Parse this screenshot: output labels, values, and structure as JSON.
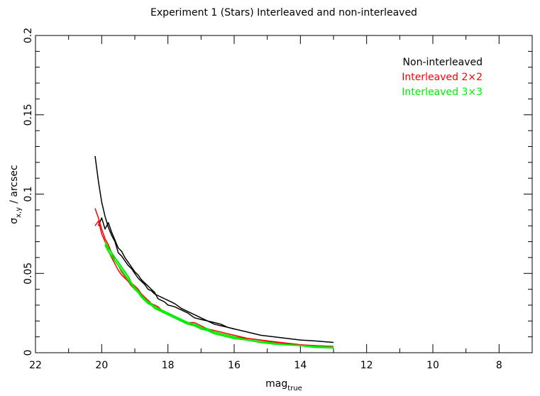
{
  "chart_data": {
    "type": "line",
    "title": "Experiment 1 (Stars) Interleaved and non-interleaved",
    "xlabel_main": "mag",
    "xlabel_sub": "true",
    "ylabel_main": "σ",
    "ylabel_sub": "x,y",
    "ylabel_rest": "/ arcsec",
    "xlim": [
      22,
      7
    ],
    "ylim": [
      0,
      0.2
    ],
    "x_tick_labels": [
      "22",
      "20",
      "18",
      "16",
      "14",
      "12",
      "10",
      "8"
    ],
    "x_ticks": [
      22,
      20,
      18,
      16,
      14,
      12,
      10,
      8
    ],
    "y_tick_labels": [
      "0",
      "0.05",
      "0.1",
      "0.15",
      "0.2"
    ],
    "y_ticks": [
      0,
      0.05,
      0.1,
      0.15,
      0.2
    ],
    "legend_position": "top-right",
    "series": [
      {
        "name": "Non-interleaved",
        "color": "#000000",
        "lines": [
          {
            "x": [
              20.2,
              20.1,
              20.0,
              19.9,
              19.8,
              19.7,
              19.6,
              19.5,
              19.4,
              19.3,
              19.2,
              19.1,
              19.0,
              18.9,
              18.8,
              18.7,
              18.6,
              18.5,
              18.4,
              18.3,
              18.2,
              18.1,
              18.0,
              17.8,
              17.6,
              17.4,
              17.2,
              17.0,
              16.8,
              16.6,
              16.4,
              16.2,
              16.0,
              15.6,
              15.2,
              14.8,
              14.4,
              14.0,
              13.6,
              13.0
            ],
            "y": [
              0.124,
              0.108,
              0.095,
              0.086,
              0.079,
              0.074,
              0.07,
              0.063,
              0.061,
              0.058,
              0.055,
              0.053,
              0.05,
              0.047,
              0.045,
              0.043,
              0.04,
              0.039,
              0.037,
              0.036,
              0.035,
              0.034,
              0.033,
              0.031,
              0.028,
              0.026,
              0.024,
              0.022,
              0.02,
              0.019,
              0.018,
              0.016,
              0.015,
              0.013,
              0.011,
              0.01,
              0.009,
              0.008,
              0.0075,
              0.0065
            ]
          },
          {
            "x": [
              20.1,
              20.0,
              19.9,
              19.8,
              19.7,
              19.6,
              19.5,
              19.4,
              19.3,
              19.2,
              19.1,
              19.0,
              18.9,
              18.8,
              18.7,
              18.6,
              18.5,
              18.4,
              18.3,
              18.2,
              18.1,
              18.0,
              17.8,
              17.6,
              17.4,
              17.2,
              17.0,
              16.8,
              16.6,
              16.4,
              16.2,
              16.0
            ],
            "y": [
              0.08,
              0.085,
              0.078,
              0.082,
              0.076,
              0.071,
              0.066,
              0.064,
              0.06,
              0.057,
              0.054,
              0.051,
              0.049,
              0.046,
              0.044,
              0.042,
              0.04,
              0.038,
              0.034,
              0.033,
              0.032,
              0.03,
              0.029,
              0.027,
              0.025,
              0.022,
              0.021,
              0.02,
              0.018,
              0.017,
              0.016,
              0.015
            ]
          }
        ]
      },
      {
        "name": "Interleaved 2×2",
        "color": "#ff0000",
        "lines": [
          {
            "x": [
              20.2,
              20.1,
              20.0,
              19.9,
              19.8,
              19.7,
              19.6,
              19.5,
              19.4,
              19.3,
              19.2,
              19.1,
              19.0,
              18.9,
              18.8,
              18.7,
              18.6,
              18.5,
              18.4,
              18.3,
              18.2,
              18.0,
              17.8,
              17.6,
              17.4,
              17.2,
              17.0,
              16.8,
              16.6,
              16.4,
              16.2,
              16.0,
              15.6,
              15.2,
              14.8,
              14.4,
              14.0,
              13.6,
              13.0
            ],
            "y": [
              0.091,
              0.085,
              0.078,
              0.072,
              0.068,
              0.063,
              0.058,
              0.055,
              0.051,
              0.048,
              0.046,
              0.044,
              0.042,
              0.04,
              0.037,
              0.035,
              0.033,
              0.031,
              0.03,
              0.029,
              0.027,
              0.025,
              0.023,
              0.021,
              0.019,
              0.019,
              0.017,
              0.015,
              0.014,
              0.013,
              0.012,
              0.011,
              0.009,
              0.008,
              0.007,
              0.006,
              0.005,
              0.0045,
              0.004
            ]
          },
          {
            "x": [
              20.2,
              20.1,
              20.0,
              19.9,
              19.8,
              19.7,
              19.6,
              19.5,
              19.4,
              19.3,
              19.2,
              19.1,
              19.0,
              18.9,
              18.8,
              18.7,
              18.6,
              18.5,
              18.4,
              18.3,
              18.2,
              18.0,
              17.8,
              17.6,
              17.4,
              17.2,
              17.0,
              16.8,
              16.6,
              16.4,
              16.2,
              16.0,
              15.6,
              15.2,
              14.8,
              14.4,
              14.0,
              13.6,
              13.0
            ],
            "y": [
              0.08,
              0.083,
              0.075,
              0.07,
              0.064,
              0.06,
              0.056,
              0.052,
              0.049,
              0.047,
              0.045,
              0.042,
              0.04,
              0.038,
              0.036,
              0.034,
              0.032,
              0.03,
              0.029,
              0.028,
              0.026,
              0.024,
              0.022,
              0.02,
              0.019,
              0.017,
              0.016,
              0.014,
              0.013,
              0.012,
              0.011,
              0.01,
              0.009,
              0.008,
              0.0065,
              0.0055,
              0.005,
              0.004,
              0.0035
            ]
          }
        ]
      },
      {
        "name": "Interleaved 3×3",
        "color": "#00ee00",
        "lines": [
          {
            "x": [
              19.9,
              19.8,
              19.7,
              19.6,
              19.5,
              19.4,
              19.3,
              19.2,
              19.1,
              19.0,
              18.9,
              18.8,
              18.7,
              18.6,
              18.5,
              18.4,
              18.3,
              18.2,
              18.0,
              17.8,
              17.6,
              17.4,
              17.2,
              17.0,
              16.8,
              16.6,
              16.4,
              16.2,
              16.0,
              15.6,
              15.2,
              14.8,
              14.4,
              14.0,
              13.6,
              13.0
            ],
            "y": [
              0.07,
              0.066,
              0.063,
              0.06,
              0.057,
              0.054,
              0.051,
              0.048,
              0.044,
              0.041,
              0.039,
              0.036,
              0.034,
              0.032,
              0.031,
              0.029,
              0.028,
              0.027,
              0.025,
              0.023,
              0.021,
              0.019,
              0.018,
              0.016,
              0.015,
              0.013,
              0.012,
              0.011,
              0.01,
              0.008,
              0.007,
              0.006,
              0.005,
              0.0045,
              0.004,
              0.0035
            ]
          },
          {
            "x": [
              19.9,
              19.8,
              19.7,
              19.6,
              19.5,
              19.4,
              19.3,
              19.2,
              19.1,
              19.0,
              18.9,
              18.8,
              18.7,
              18.6,
              18.5,
              18.4,
              18.3,
              18.2,
              18.0,
              17.8,
              17.6,
              17.4,
              17.2,
              17.0,
              16.8,
              16.6,
              16.4,
              16.2,
              16.0,
              15.6,
              15.2,
              14.8,
              14.4,
              14.0,
              13.6,
              13.0
            ],
            "y": [
              0.068,
              0.064,
              0.061,
              0.058,
              0.055,
              0.052,
              0.049,
              0.046,
              0.043,
              0.04,
              0.038,
              0.035,
              0.033,
              0.031,
              0.03,
              0.028,
              0.027,
              0.026,
              0.024,
              0.022,
              0.02,
              0.018,
              0.017,
              0.015,
              0.014,
              0.012,
              0.011,
              0.01,
              0.009,
              0.008,
              0.0065,
              0.0055,
              0.005,
              0.0045,
              0.0035,
              0.003
            ]
          }
        ]
      }
    ]
  }
}
